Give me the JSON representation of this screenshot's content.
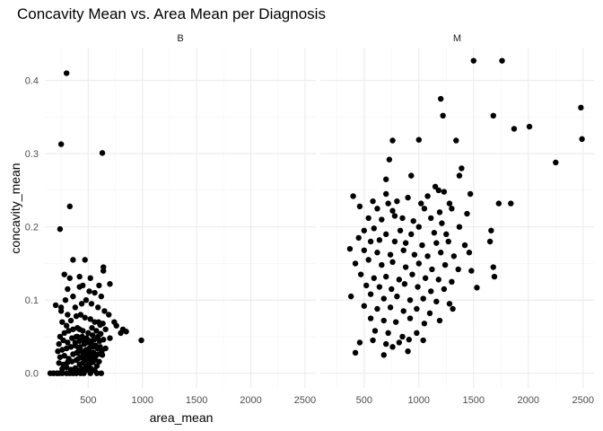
{
  "chart_data": {
    "type": "scatter",
    "title": "Concavity Mean vs. Area Mean per Diagnosis",
    "xlabel": "area_mean",
    "ylabel": "concavity_mean",
    "xlim": [
      100,
      2600
    ],
    "ylim": [
      -0.02,
      0.445
    ],
    "x_ticks": [
      500,
      1000,
      1500,
      2000,
      2500
    ],
    "x_tick_labels": [
      "500",
      "1000",
      "1500",
      "2000",
      "2500"
    ],
    "y_ticks": [
      0.0,
      0.1,
      0.2,
      0.3,
      0.4
    ],
    "y_tick_labels": [
      "0.0",
      "0.1",
      "0.2",
      "0.3",
      "0.4"
    ],
    "grid": true,
    "legend": "none",
    "point_color": "#000000",
    "facets": [
      {
        "label": "B",
        "points": [
          [
            300,
            0.41
          ],
          [
            250,
            0.313
          ],
          [
            630,
            0.301
          ],
          [
            330,
            0.228
          ],
          [
            240,
            0.197
          ],
          [
            360,
            0.155
          ],
          [
            470,
            0.155
          ],
          [
            640,
            0.145
          ],
          [
            280,
            0.135
          ],
          [
            330,
            0.13
          ],
          [
            420,
            0.132
          ],
          [
            520,
            0.13
          ],
          [
            640,
            0.14
          ],
          [
            200,
            0.093
          ],
          [
            250,
            0.09
          ],
          [
            290,
            0.1
          ],
          [
            310,
            0.115
          ],
          [
            360,
            0.105
          ],
          [
            420,
            0.118
          ],
          [
            450,
            0.12
          ],
          [
            510,
            0.112
          ],
          [
            560,
            0.11
          ],
          [
            600,
            0.12
          ],
          [
            620,
            0.105
          ],
          [
            700,
            0.122
          ],
          [
            740,
            0.07
          ],
          [
            760,
            0.065
          ],
          [
            800,
            0.055
          ],
          [
            820,
            0.06
          ],
          [
            850,
            0.057
          ],
          [
            990,
            0.045
          ],
          [
            250,
            0.085
          ],
          [
            310,
            0.08
          ],
          [
            380,
            0.09
          ],
          [
            440,
            0.095
          ],
          [
            480,
            0.1
          ],
          [
            530,
            0.095
          ],
          [
            590,
            0.09
          ],
          [
            650,
            0.085
          ],
          [
            690,
            0.08
          ],
          [
            260,
            0.07
          ],
          [
            300,
            0.065
          ],
          [
            340,
            0.072
          ],
          [
            390,
            0.078
          ],
          [
            430,
            0.08
          ],
          [
            470,
            0.076
          ],
          [
            520,
            0.074
          ],
          [
            560,
            0.07
          ],
          [
            610,
            0.066
          ],
          [
            660,
            0.06
          ],
          [
            240,
            0.05
          ],
          [
            280,
            0.055
          ],
          [
            320,
            0.058
          ],
          [
            360,
            0.06
          ],
          [
            400,
            0.062
          ],
          [
            450,
            0.058
          ],
          [
            500,
            0.055
          ],
          [
            540,
            0.052
          ],
          [
            590,
            0.05
          ],
          [
            640,
            0.046
          ],
          [
            700,
            0.048
          ],
          [
            230,
            0.04
          ],
          [
            270,
            0.045
          ],
          [
            310,
            0.042
          ],
          [
            350,
            0.048
          ],
          [
            390,
            0.05
          ],
          [
            420,
            0.044
          ],
          [
            460,
            0.046
          ],
          [
            500,
            0.042
          ],
          [
            530,
            0.04
          ],
          [
            570,
            0.038
          ],
          [
            610,
            0.036
          ],
          [
            660,
            0.034
          ],
          [
            220,
            0.03
          ],
          [
            260,
            0.032
          ],
          [
            300,
            0.034
          ],
          [
            340,
            0.036
          ],
          [
            380,
            0.038
          ],
          [
            410,
            0.035
          ],
          [
            440,
            0.03
          ],
          [
            480,
            0.032
          ],
          [
            510,
            0.034
          ],
          [
            550,
            0.028
          ],
          [
            590,
            0.026
          ],
          [
            630,
            0.025
          ],
          [
            240,
            0.022
          ],
          [
            280,
            0.024
          ],
          [
            320,
            0.02
          ],
          [
            360,
            0.026
          ],
          [
            400,
            0.028
          ],
          [
            430,
            0.022
          ],
          [
            460,
            0.02
          ],
          [
            490,
            0.024
          ],
          [
            520,
            0.022
          ],
          [
            560,
            0.018
          ],
          [
            600,
            0.016
          ],
          [
            230,
            0.014
          ],
          [
            270,
            0.012
          ],
          [
            310,
            0.015
          ],
          [
            350,
            0.016
          ],
          [
            390,
            0.018
          ],
          [
            420,
            0.012
          ],
          [
            450,
            0.014
          ],
          [
            480,
            0.01
          ],
          [
            510,
            0.012
          ],
          [
            540,
            0.015
          ],
          [
            580,
            0.01
          ],
          [
            260,
            0.006
          ],
          [
            300,
            0.008
          ],
          [
            340,
            0.005
          ],
          [
            380,
            0.007
          ],
          [
            410,
            0.004
          ],
          [
            440,
            0.006
          ],
          [
            470,
            0.003
          ],
          [
            500,
            0.005
          ],
          [
            530,
            0.006
          ],
          [
            560,
            0.004
          ],
          [
            150,
            0.0
          ],
          [
            180,
            0.0
          ],
          [
            210,
            0.0
          ],
          [
            230,
            0.0
          ],
          [
            260,
            0.0
          ],
          [
            300,
            0.0
          ],
          [
            330,
            0.0
          ],
          [
            360,
            0.0
          ],
          [
            390,
            0.0
          ],
          [
            430,
            0.0
          ],
          [
            460,
            0.0
          ],
          [
            520,
            0.0
          ],
          [
            580,
            0.0
          ],
          [
            620,
            0.0
          ],
          [
            400,
            0.05
          ],
          [
            420,
            0.06
          ],
          [
            380,
            0.042
          ],
          [
            395,
            0.028
          ],
          [
            410,
            0.02
          ],
          [
            425,
            0.036
          ],
          [
            445,
            0.05
          ],
          [
            455,
            0.026
          ],
          [
            465,
            0.04
          ],
          [
            475,
            0.018
          ],
          [
            485,
            0.048
          ],
          [
            495,
            0.03
          ],
          [
            505,
            0.016
          ],
          [
            515,
            0.044
          ],
          [
            525,
            0.028
          ],
          [
            535,
            0.062
          ],
          [
            545,
            0.036
          ],
          [
            555,
            0.046
          ],
          [
            565,
            0.022
          ],
          [
            575,
            0.058
          ],
          [
            585,
            0.034
          ],
          [
            595,
            0.07
          ],
          [
            605,
            0.044
          ],
          [
            615,
            0.054
          ],
          [
            625,
            0.03
          ],
          [
            635,
            0.068
          ]
        ]
      },
      {
        "label": "M",
        "points": [
          [
            1500,
            0.427
          ],
          [
            1760,
            0.427
          ],
          [
            1200,
            0.375
          ],
          [
            1220,
            0.352
          ],
          [
            1680,
            0.352
          ],
          [
            2480,
            0.363
          ],
          [
            1870,
            0.334
          ],
          [
            2010,
            0.337
          ],
          [
            2490,
            0.32
          ],
          [
            760,
            0.318
          ],
          [
            1000,
            0.319
          ],
          [
            1340,
            0.318
          ],
          [
            730,
            0.292
          ],
          [
            1390,
            0.28
          ],
          [
            2250,
            0.288
          ],
          [
            700,
            0.265
          ],
          [
            930,
            0.27
          ],
          [
            1370,
            0.27
          ],
          [
            1150,
            0.255
          ],
          [
            1180,
            0.25
          ],
          [
            1230,
            0.248
          ],
          [
            700,
            0.245
          ],
          [
            1080,
            0.242
          ],
          [
            1470,
            0.245
          ],
          [
            400,
            0.242
          ],
          [
            580,
            0.235
          ],
          [
            720,
            0.232
          ],
          [
            800,
            0.235
          ],
          [
            900,
            0.24
          ],
          [
            1020,
            0.232
          ],
          [
            1280,
            0.232
          ],
          [
            1730,
            0.232
          ],
          [
            1840,
            0.232
          ],
          [
            460,
            0.228
          ],
          [
            620,
            0.225
          ],
          [
            760,
            0.222
          ],
          [
            1050,
            0.225
          ],
          [
            1190,
            0.22
          ],
          [
            1300,
            0.225
          ],
          [
            1440,
            0.218
          ],
          [
            540,
            0.212
          ],
          [
            660,
            0.21
          ],
          [
            780,
            0.215
          ],
          [
            850,
            0.212
          ],
          [
            950,
            0.208
          ],
          [
            1110,
            0.212
          ],
          [
            1210,
            0.205
          ],
          [
            1370,
            0.2
          ],
          [
            1660,
            0.195
          ],
          [
            500,
            0.195
          ],
          [
            590,
            0.198
          ],
          [
            700,
            0.19
          ],
          [
            830,
            0.195
          ],
          [
            930,
            0.19
          ],
          [
            1000,
            0.2
          ],
          [
            1140,
            0.192
          ],
          [
            1250,
            0.19
          ],
          [
            450,
            0.185
          ],
          [
            560,
            0.18
          ],
          [
            640,
            0.182
          ],
          [
            780,
            0.18
          ],
          [
            880,
            0.178
          ],
          [
            1030,
            0.175
          ],
          [
            1160,
            0.178
          ],
          [
            1270,
            0.18
          ],
          [
            1420,
            0.175
          ],
          [
            1650,
            0.18
          ],
          [
            370,
            0.17
          ],
          [
            500,
            0.168
          ],
          [
            620,
            0.165
          ],
          [
            740,
            0.162
          ],
          [
            860,
            0.168
          ],
          [
            960,
            0.162
          ],
          [
            1080,
            0.16
          ],
          [
            1200,
            0.165
          ],
          [
            1320,
            0.16
          ],
          [
            1460,
            0.165
          ],
          [
            420,
            0.15
          ],
          [
            540,
            0.155
          ],
          [
            660,
            0.148
          ],
          [
            760,
            0.152
          ],
          [
            880,
            0.145
          ],
          [
            1000,
            0.15
          ],
          [
            1120,
            0.142
          ],
          [
            1240,
            0.148
          ],
          [
            1360,
            0.142
          ],
          [
            1480,
            0.14
          ],
          [
            1680,
            0.145
          ],
          [
            470,
            0.135
          ],
          [
            590,
            0.13
          ],
          [
            700,
            0.132
          ],
          [
            820,
            0.128
          ],
          [
            940,
            0.135
          ],
          [
            1060,
            0.13
          ],
          [
            1180,
            0.128
          ],
          [
            1300,
            0.125
          ],
          [
            1690,
            0.132
          ],
          [
            520,
            0.12
          ],
          [
            640,
            0.118
          ],
          [
            750,
            0.115
          ],
          [
            870,
            0.122
          ],
          [
            990,
            0.118
          ],
          [
            1110,
            0.112
          ],
          [
            1230,
            0.115
          ],
          [
            1530,
            0.117
          ],
          [
            380,
            0.105
          ],
          [
            560,
            0.108
          ],
          [
            680,
            0.102
          ],
          [
            800,
            0.105
          ],
          [
            920,
            0.1
          ],
          [
            1040,
            0.102
          ],
          [
            1160,
            0.098
          ],
          [
            1280,
            0.095
          ],
          [
            500,
            0.092
          ],
          [
            620,
            0.088
          ],
          [
            740,
            0.09
          ],
          [
            860,
            0.085
          ],
          [
            980,
            0.088
          ],
          [
            1100,
            0.082
          ],
          [
            1310,
            0.088
          ],
          [
            560,
            0.075
          ],
          [
            680,
            0.072
          ],
          [
            790,
            0.07
          ],
          [
            920,
            0.075
          ],
          [
            1050,
            0.068
          ],
          [
            1190,
            0.072
          ],
          [
            600,
            0.058
          ],
          [
            720,
            0.055
          ],
          [
            850,
            0.05
          ],
          [
            980,
            0.055
          ],
          [
            460,
            0.042
          ],
          [
            580,
            0.045
          ],
          [
            700,
            0.04
          ],
          [
            820,
            0.042
          ],
          [
            910,
            0.046
          ],
          [
            1040,
            0.045
          ],
          [
            420,
            0.028
          ],
          [
            680,
            0.025
          ],
          [
            900,
            0.03
          ],
          [
            760,
            0.036
          ]
        ]
      }
    ]
  }
}
